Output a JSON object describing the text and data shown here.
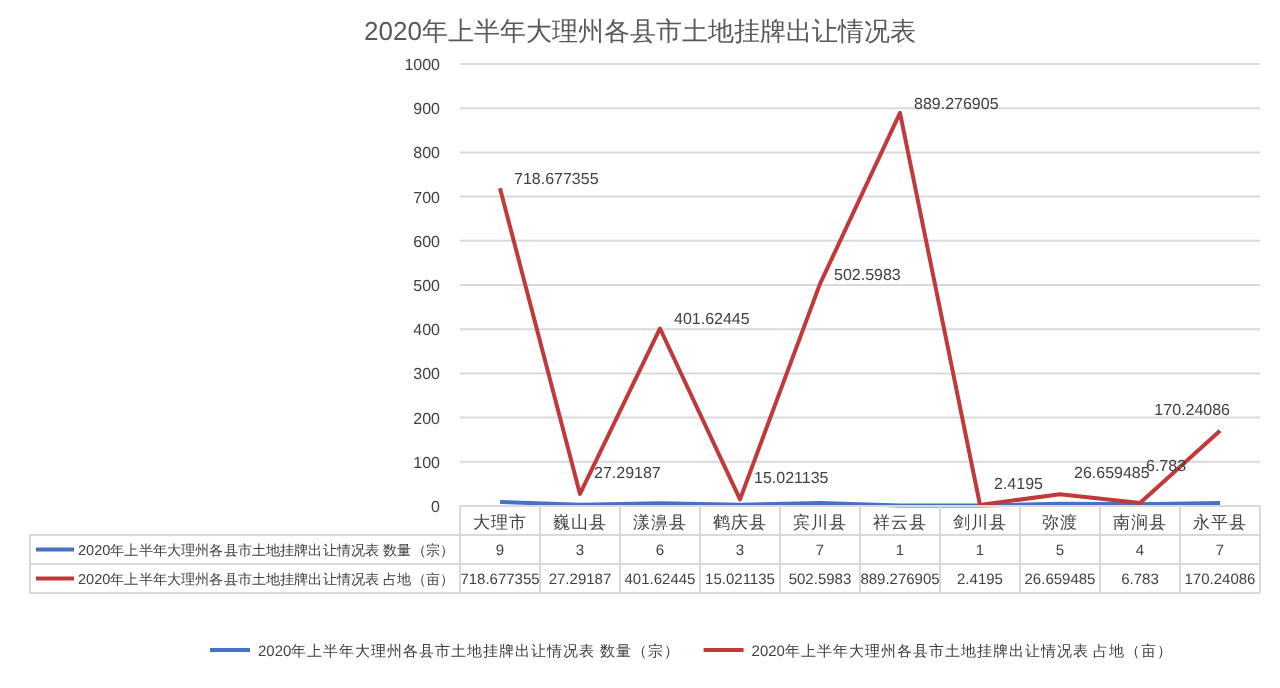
{
  "chart_data": {
    "type": "line",
    "title": "2020年上半年大理州各县市土地挂牌出让情况表",
    "categories": [
      "大理市",
      "巍山县",
      "漾濞县",
      "鹤庆县",
      "宾川县",
      "祥云县",
      "剑川县",
      "弥渡",
      "南涧县",
      "永平县"
    ],
    "series": [
      {
        "name": "2020年上半年大理州各县市土地挂牌出让情况表 数量（宗）",
        "color": "#4472c4",
        "values": [
          9,
          3,
          6,
          3,
          7,
          1,
          1,
          5,
          4,
          7
        ]
      },
      {
        "name": "2020年上半年大理州各县市土地挂牌出让情况表 占地（亩）",
        "color": "#c0393b",
        "values": [
          718.677355,
          27.29187,
          401.62445,
          15.021135,
          502.5983,
          889.276905,
          2.4195,
          26.659485,
          6.783,
          170.24086
        ]
      }
    ],
    "annotations": [
      {
        "text": "718.677355",
        "x": "大理市",
        "y": 718.677355
      },
      {
        "text": "27.29187",
        "x": "巍山县",
        "y": 27.29187
      },
      {
        "text": "401.62445",
        "x": "漾濞县",
        "y": 401.62445
      },
      {
        "text": "15.021135",
        "x": "鹤庆县",
        "y": 15.021135
      },
      {
        "text": "502.5983",
        "x": "宾川县",
        "y": 502.5983
      },
      {
        "text": "889.276905",
        "x": "祥云县",
        "y": 889.276905
      },
      {
        "text": "2.4195",
        "x": "剑川县",
        "y": 2.4195
      },
      {
        "text": "26.659485",
        "x": "弥渡",
        "y": 26.659485
      },
      {
        "text": "6.783",
        "x": "南涧县",
        "y": 6.783
      },
      {
        "text": "170.24086",
        "x": "永平县",
        "y": 170.24086
      }
    ],
    "ylim": [
      0,
      1000
    ],
    "yticks": [
      0,
      100,
      200,
      300,
      400,
      500,
      600,
      700,
      800,
      900,
      1000
    ],
    "grid": "y",
    "legend": "bottom",
    "data_labels": true,
    "marker": "none",
    "line_style": "solid"
  }
}
